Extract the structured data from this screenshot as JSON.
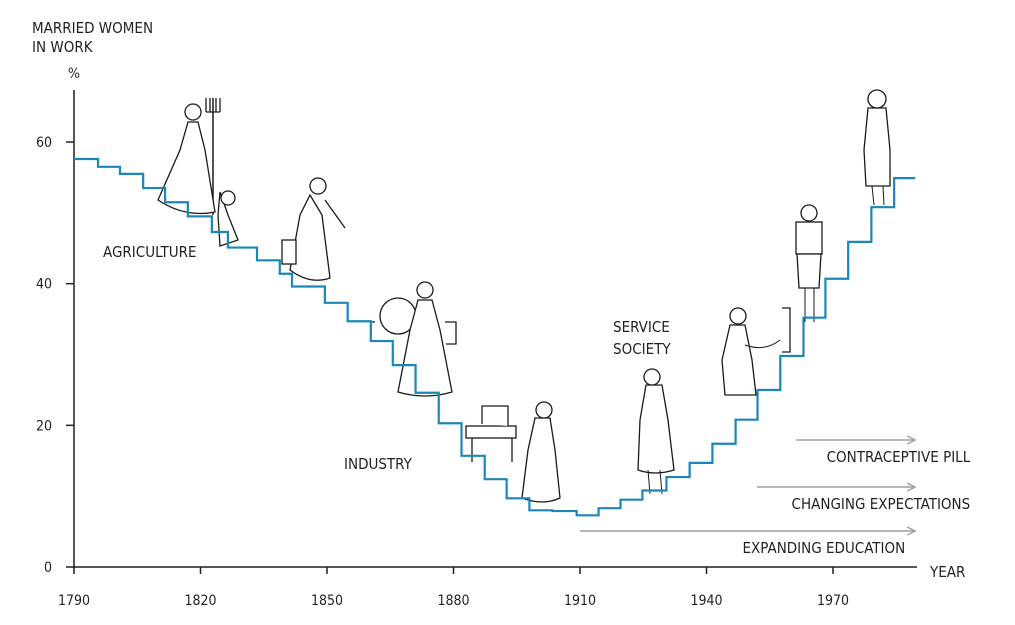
{
  "chart_data": {
    "type": "line",
    "style": "step",
    "title": "MARRIED WOMEN IN WORK",
    "title_lines": [
      "MARRIED WOMEN",
      "IN WORK"
    ],
    "ylabel": "%",
    "xlabel": "YEAR",
    "xlim": [
      1790,
      1990
    ],
    "ylim": [
      0,
      68
    ],
    "xticks": [
      1790,
      1820,
      1850,
      1880,
      1910,
      1940,
      1970
    ],
    "yticks": [
      0,
      20,
      40,
      60
    ],
    "grid": false,
    "series": [
      {
        "name": "Married women in work (%)",
        "color": "#1a87b8",
        "step_start_years": [
          1790,
          1795.7,
          1800.9,
          1806.4,
          1811.6,
          1817,
          1822.7,
          1826.5,
          1833.4,
          1838.8,
          1841.7,
          1849.5,
          1854.9,
          1860.4,
          1865.6,
          1871,
          1876.5,
          1881.9,
          1887.4,
          1892.6,
          1898,
          1903.5,
          1909.2,
          1914.4,
          1919.6,
          1924.8,
          1930.5,
          1936,
          1941.4,
          1946.9,
          1952.1,
          1957.5,
          1963,
          1968.2,
          1973.6,
          1979.1,
          1984.5
        ],
        "values": [
          57.6,
          56.5,
          55.5,
          53.5,
          51.5,
          49.5,
          47.3,
          45.1,
          43.3,
          41.4,
          39.6,
          37.3,
          34.7,
          31.9,
          28.5,
          24.6,
          20.3,
          15.7,
          12.4,
          9.7,
          8.0,
          7.9,
          7.3,
          8.3,
          9.5,
          10.8,
          12.7,
          14.7,
          17.4,
          20.8,
          25.0,
          29.8,
          35.2,
          40.7,
          45.9,
          50.8,
          54.9
        ],
        "end_year": 1989.5
      }
    ],
    "annotations": [
      {
        "text": "AGRICULTURE"
      },
      {
        "text": "INDUSTRY"
      },
      {
        "text": "SERVICE",
        "text2": "SOCIETY"
      }
    ],
    "arrows": [
      {
        "label": "CONTRACEPTIVE PILL",
        "from_year": 1961.3,
        "to_year": 1989.5,
        "color": "#9d9fa2"
      },
      {
        "label": "CHANGING EXPECTATIONS",
        "from_year": 1952,
        "to_year": 1989.5,
        "color": "#9d9fa2"
      },
      {
        "label": "EXPANDING EDUCATION",
        "from_year": 1910,
        "to_year": 1989.5,
        "color": "#9d9fa2"
      }
    ]
  }
}
